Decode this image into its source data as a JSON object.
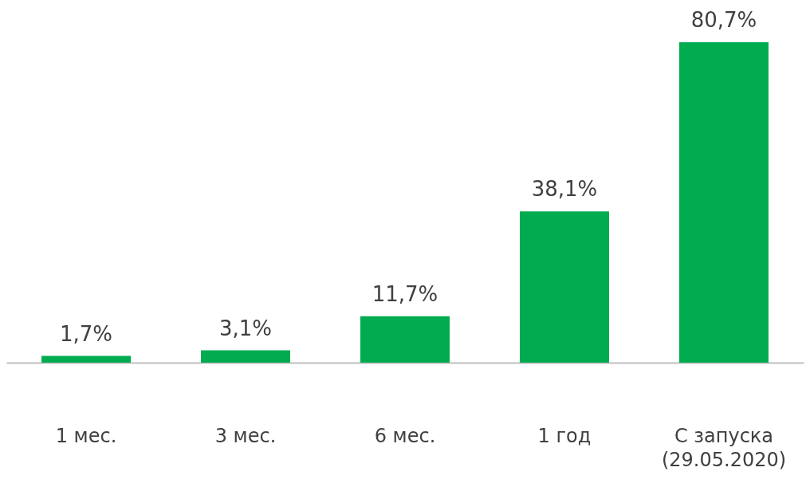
{
  "chart_data": {
    "type": "bar",
    "categories": [
      "1 мес.",
      "3 мес.",
      "6 мес.",
      "1 год",
      "С запуска (29.05.2020)"
    ],
    "values": [
      1.7,
      3.1,
      11.7,
      38.1,
      80.7
    ],
    "value_labels": [
      "1,7%",
      "3,1%",
      "11,7%",
      "38,1%",
      "80,7%"
    ],
    "color": "#00ac4f"
  }
}
